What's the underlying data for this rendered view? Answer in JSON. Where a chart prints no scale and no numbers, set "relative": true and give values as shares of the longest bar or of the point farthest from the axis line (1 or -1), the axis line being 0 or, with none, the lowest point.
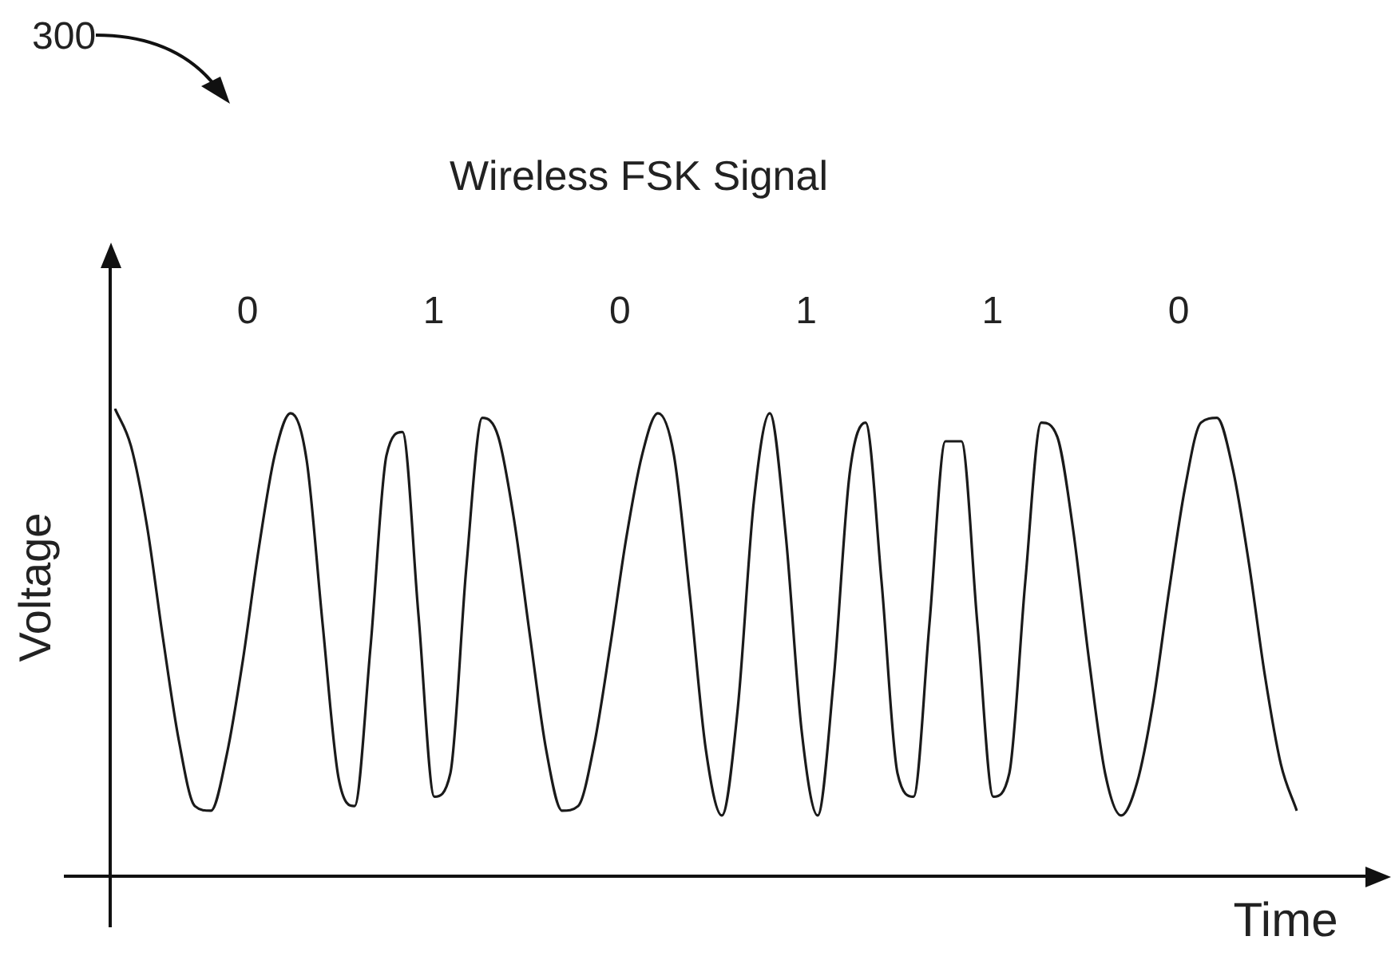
{
  "chart_data": {
    "type": "line",
    "title": "Wireless FSK Signal",
    "xlabel": "Time",
    "ylabel": "Voltage",
    "relative": true,
    "marker": "none",
    "color": "#1a1a1a",
    "annotations": [
      "300",
      "0",
      "1",
      "0",
      "1",
      "1",
      "0"
    ],
    "categories": [
      null,
      null,
      null,
      null,
      null,
      null,
      null,
      null,
      null,
      null,
      null,
      null,
      null,
      null,
      null,
      null,
      null,
      null,
      null,
      null,
      null,
      null,
      null,
      null,
      null,
      null,
      null,
      null,
      null,
      null,
      null,
      null,
      null,
      null,
      null,
      null,
      null,
      null,
      null,
      null,
      null,
      null,
      null,
      null,
      null,
      null,
      null,
      null,
      null,
      null,
      null,
      null,
      null,
      null,
      null,
      null,
      null,
      null,
      null,
      null,
      null,
      null,
      null,
      null,
      null,
      null,
      null,
      null,
      null,
      null,
      null,
      null,
      null,
      null,
      null
    ],
    "values": [
      1,
      0.92,
      0.75,
      0.51,
      0.29,
      0.15,
      0.14,
      0.26,
      0.46,
      0.7,
      0.9,
      0.99,
      0.89,
      0.54,
      0.21,
      0.15,
      0.49,
      0.9,
      0.95,
      0.56,
      0.17,
      0.22,
      0.66,
      0.98,
      0.94,
      0.76,
      0.51,
      0.27,
      0.14,
      0.15,
      0.28,
      0.49,
      0.72,
      0.9,
      0.99,
      0.9,
      0.6,
      0.27,
      0.13,
      0.36,
      0.8,
      0.99,
      0.73,
      0.31,
      0.13,
      0.42,
      0.86,
      0.97,
      0.63,
      0.22,
      0.17,
      0.54,
      0.93,
      0.93,
      0.54,
      0.17,
      0.22,
      0.63,
      0.97,
      0.94,
      0.74,
      0.46,
      0.22,
      0.13,
      0.2,
      0.37,
      0.61,
      0.83,
      0.97,
      0.98,
      0.87,
      0.67,
      0.43,
      0.24,
      0.14
    ]
  }
}
